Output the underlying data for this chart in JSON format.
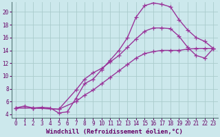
{
  "xlabel": "Windchill (Refroidissement éolien,°C)",
  "bg_color": "#cce8ec",
  "line_color": "#993399",
  "grid_color": "#aacccc",
  "xlim": [
    -0.5,
    23.5
  ],
  "ylim": [
    3.5,
    21.5
  ],
  "xticks": [
    0,
    1,
    2,
    3,
    4,
    5,
    6,
    7,
    8,
    9,
    10,
    11,
    12,
    13,
    14,
    15,
    16,
    17,
    18,
    19,
    20,
    21,
    22,
    23
  ],
  "yticks": [
    4,
    6,
    8,
    10,
    12,
    14,
    16,
    18,
    20
  ],
  "curve1_x": [
    0,
    1,
    2,
    3,
    4,
    5,
    6,
    7,
    8,
    9,
    10,
    11,
    12,
    13,
    14,
    15,
    16,
    17,
    18,
    19,
    20,
    21,
    22,
    23
  ],
  "curve1_y": [
    5.0,
    5.3,
    5.0,
    5.1,
    5.0,
    4.2,
    4.4,
    6.5,
    8.8,
    9.5,
    11.0,
    12.5,
    14.0,
    16.0,
    19.2,
    21.0,
    21.4,
    21.2,
    20.8,
    18.8,
    17.2,
    16.0,
    15.4,
    14.3
  ],
  "curve2_x": [
    0,
    2,
    5,
    7,
    8,
    9,
    10,
    11,
    12,
    13,
    14,
    15,
    16,
    17,
    18,
    19,
    20,
    21,
    22,
    23
  ],
  "curve2_y": [
    5.0,
    5.0,
    4.8,
    7.8,
    9.5,
    10.5,
    11.2,
    12.2,
    13.2,
    14.5,
    15.8,
    17.0,
    17.5,
    17.5,
    17.4,
    16.2,
    14.5,
    13.2,
    12.8,
    14.3
  ],
  "curve3_x": [
    0,
    2,
    5,
    7,
    8,
    9,
    10,
    11,
    12,
    13,
    14,
    15,
    16,
    17,
    18,
    19,
    20,
    21,
    22,
    23
  ],
  "curve3_y": [
    5.0,
    5.0,
    4.8,
    6.0,
    7.0,
    7.8,
    8.8,
    9.8,
    10.8,
    11.8,
    12.8,
    13.5,
    13.8,
    14.0,
    14.0,
    14.0,
    14.2,
    14.3,
    14.3,
    14.3
  ],
  "marker": "+",
  "markersize": 4,
  "linewidth": 1.0,
  "xlabel_fontsize": 6.5,
  "tick_fontsize": 5.5
}
